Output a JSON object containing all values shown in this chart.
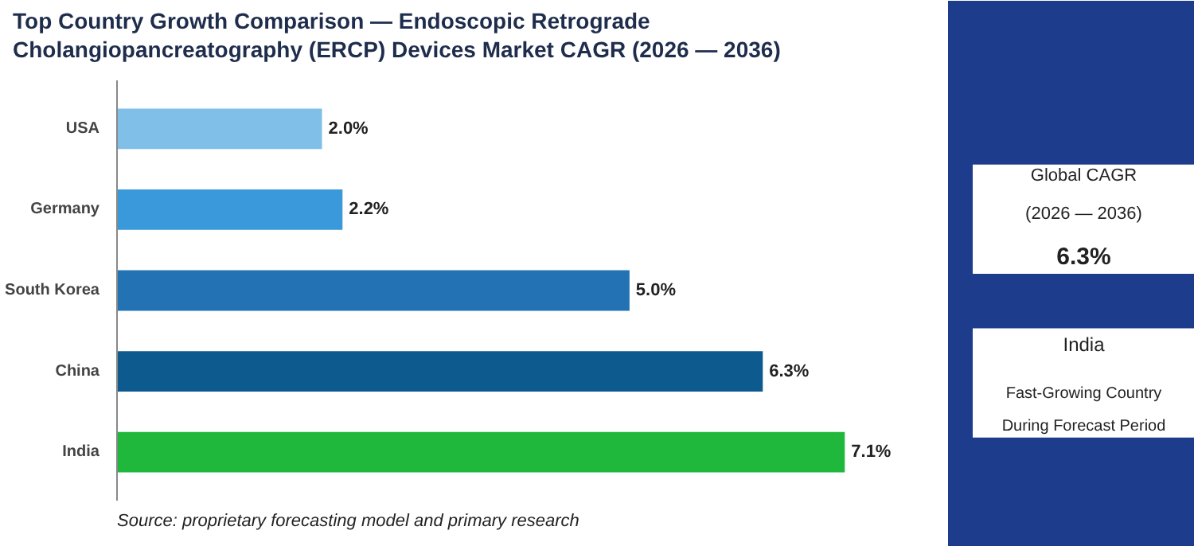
{
  "chart_data": {
    "type": "bar",
    "orientation": "horizontal",
    "title": "Top Country Growth Comparison — Endoscopic Retrograde Cholangiopancreatography (ERCP) Devices Market CAGR (2026 — 2036)",
    "categories": [
      "USA",
      "Germany",
      "South Korea",
      "China",
      "India"
    ],
    "values": [
      2.0,
      2.2,
      5.0,
      6.3,
      7.1
    ],
    "colors": [
      "#80bfe8",
      "#3a99da",
      "#2272b4",
      "#0d5a8f",
      "#1fb83c"
    ],
    "value_labels": [
      "2.0%",
      "2.2%",
      "5.0%",
      "6.3%",
      "7.1%"
    ],
    "grid": false,
    "annotations": [
      "Global CAGR",
      "(2026 — 2036)",
      "6.3%",
      "India",
      "Fast-Growing Country During Forecast Period",
      "Source: proprietary forecasting model and primary research"
    ]
  }
}
